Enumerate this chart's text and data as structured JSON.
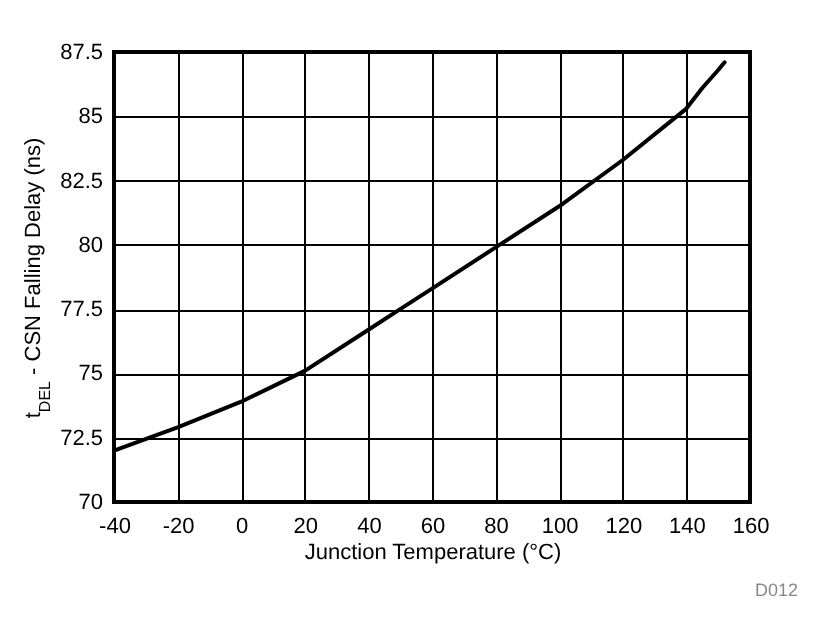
{
  "chart_data": {
    "type": "line",
    "xlabel": "Junction Temperature (°C)",
    "ylabel": "t$_{DEL}$ - CSN Falling Delay (ns)",
    "x": [
      -40,
      -20,
      0,
      20,
      40,
      50,
      60,
      80,
      100,
      120,
      140,
      145,
      150,
      152
    ],
    "series": [
      {
        "color": "#000000",
        "values": [
          72.0,
          72.9,
          73.9,
          75.1,
          76.7,
          77.5,
          78.3,
          79.9,
          81.5,
          83.3,
          85.3,
          86.1,
          86.8,
          87.1
        ]
      }
    ],
    "xlim": [
      -40,
      160
    ],
    "xticks": [
      -40,
      -20,
      0,
      20,
      40,
      60,
      80,
      100,
      120,
      140,
      160
    ],
    "ylim": [
      70,
      87.5
    ],
    "yticks": [
      70,
      72.5,
      75,
      77.5,
      80,
      82.5,
      85,
      87.5
    ],
    "grid": true,
    "legend": false,
    "marker": "none",
    "line_style": "solid",
    "annotations": [
      "D012"
    ]
  }
}
